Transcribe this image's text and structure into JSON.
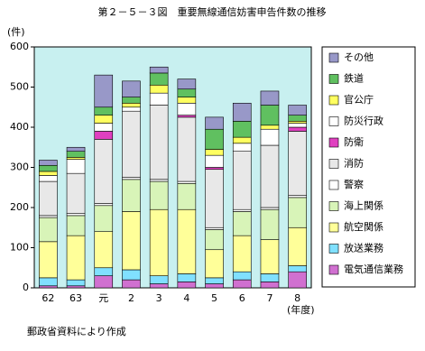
{
  "chart_data": {
    "type": "bar",
    "stacked": true,
    "title": "第２－５－３図　重要無線通信妨害申告件数の推移",
    "y_label": "(件)",
    "x_label": "(年度)",
    "source": "郵政省資料により作成",
    "categories": [
      "62",
      "63",
      "元",
      "2",
      "3",
      "4",
      "5",
      "6",
      "7",
      "8"
    ],
    "ylim": [
      0,
      600
    ],
    "yticks": [
      0,
      100,
      200,
      300,
      400,
      500,
      600
    ],
    "series": [
      {
        "name": "電気通信業務",
        "color": "#d070d0",
        "values": [
          5,
          5,
          30,
          20,
          10,
          15,
          10,
          20,
          15,
          40
        ]
      },
      {
        "name": "放送業務",
        "color": "#80e0ff",
        "values": [
          20,
          15,
          20,
          25,
          20,
          20,
          15,
          20,
          20,
          15
        ]
      },
      {
        "name": "航空関係",
        "color": "#ffff99",
        "values": [
          90,
          110,
          90,
          145,
          165,
          160,
          70,
          90,
          85,
          95
        ]
      },
      {
        "name": "海上関係",
        "color": "#d8f4b8",
        "values": [
          60,
          50,
          65,
          80,
          70,
          65,
          50,
          60,
          75,
          75
        ]
      },
      {
        "name": "警察",
        "color": "#ffffff",
        "values": [
          5,
          5,
          5,
          5,
          5,
          5,
          5,
          5,
          5,
          5
        ]
      },
      {
        "name": "消防",
        "color": "#e8e8e8",
        "values": [
          85,
          100,
          160,
          165,
          185,
          160,
          145,
          145,
          155,
          160
        ]
      },
      {
        "name": "防衛",
        "color": "#e040c0",
        "values": [
          0,
          0,
          20,
          0,
          0,
          5,
          5,
          0,
          0,
          10
        ]
      },
      {
        "name": "防災行政",
        "color": "#ffffff",
        "values": [
          15,
          35,
          20,
          10,
          30,
          30,
          30,
          20,
          40,
          10
        ]
      },
      {
        "name": "官公庁",
        "color": "#ffff60",
        "values": [
          10,
          5,
          20,
          10,
          20,
          15,
          15,
          15,
          10,
          5
        ]
      },
      {
        "name": "鉄道",
        "color": "#60c060",
        "values": [
          15,
          15,
          20,
          15,
          30,
          20,
          50,
          40,
          50,
          15
        ]
      },
      {
        "name": "その他",
        "color": "#9898c8",
        "values": [
          13,
          10,
          80,
          40,
          15,
          25,
          30,
          45,
          35,
          25
        ]
      }
    ]
  }
}
